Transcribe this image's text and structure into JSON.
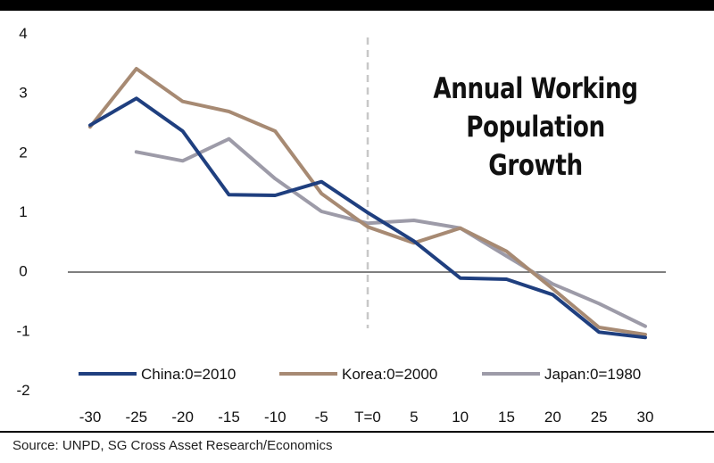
{
  "chart_data": {
    "type": "line",
    "title_lines": [
      "Annual Working",
      "Population Growth"
    ],
    "x": [
      -30,
      -25,
      -20,
      -15,
      -10,
      -5,
      0,
      5,
      10,
      15,
      20,
      25,
      30
    ],
    "x_tick_labels": [
      "-30",
      "-25",
      "-20",
      "-15",
      "-10",
      "-5",
      "T=0",
      "5",
      "10",
      "15",
      "20",
      "25",
      "30"
    ],
    "y_ticks": [
      4,
      3,
      2,
      1,
      0,
      -1,
      -2
    ],
    "ylim": [
      -2,
      4
    ],
    "xlim": [
      -30,
      30
    ],
    "vertical_marker_x": 0,
    "legend_position": "bottom",
    "series": [
      {
        "name": "China:0=2010",
        "color": "#1f3f7f",
        "values": [
          2.45,
          2.9,
          2.35,
          1.28,
          1.27,
          1.5,
          0.98,
          0.5,
          -0.12,
          -0.14,
          -0.4,
          -1.03,
          -1.12
        ]
      },
      {
        "name": "Korea:0=2000",
        "color": "#a78a73",
        "values": [
          2.42,
          3.4,
          2.85,
          2.68,
          2.35,
          1.3,
          0.74,
          0.47,
          0.72,
          0.33,
          -0.3,
          -0.95,
          -1.07
        ]
      },
      {
        "name": "Japan:0=1980",
        "color": "#9d9ba8",
        "values": [
          null,
          2.0,
          1.85,
          2.22,
          1.55,
          1.0,
          0.8,
          0.85,
          0.72,
          0.25,
          -0.22,
          -0.55,
          -0.93
        ]
      }
    ]
  },
  "source": "Source: UNPD, SG Cross Asset Research/Economics"
}
